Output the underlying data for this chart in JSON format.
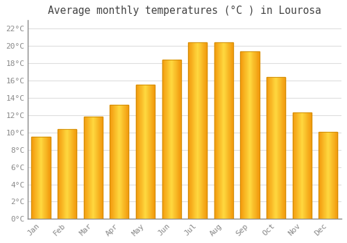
{
  "title": "Average monthly temperatures (°C ) in Lourosa",
  "months": [
    "Jan",
    "Feb",
    "Mar",
    "Apr",
    "May",
    "Jun",
    "Jul",
    "Aug",
    "Sep",
    "Oct",
    "Nov",
    "Dec"
  ],
  "temperatures": [
    9.5,
    10.4,
    11.8,
    13.2,
    15.5,
    18.4,
    20.4,
    20.4,
    19.4,
    16.4,
    12.3,
    10.1
  ],
  "bar_color": "#FFA500",
  "bar_edge_color": "#CC8800",
  "background_color": "#FFFFFF",
  "grid_color": "#DDDDDD",
  "text_color": "#888888",
  "ylim": [
    0,
    23
  ],
  "ytick_step": 2,
  "title_fontsize": 10.5,
  "tick_fontsize": 8
}
